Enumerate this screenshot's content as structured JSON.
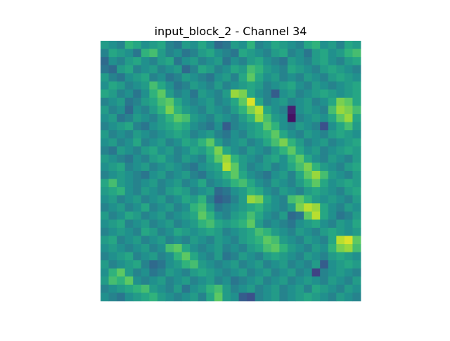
{
  "chart_data": {
    "type": "heatmap",
    "title": "input_block_2 - Channel 34",
    "axes_visible": false,
    "colormap": "viridis",
    "grid": false,
    "value_range": [
      0,
      1
    ],
    "rows": 32,
    "cols": 32,
    "values": [
      [
        0.55,
        0.5,
        0.45,
        0.65,
        0.6,
        0.5,
        0.55,
        0.6,
        0.45,
        0.4,
        0.55,
        0.5,
        0.6,
        0.5,
        0.35,
        0.4,
        0.55,
        0.5,
        0.65,
        0.45,
        0.5,
        0.6,
        0.55,
        0.5,
        0.45,
        0.6,
        0.65,
        0.5,
        0.55,
        0.45,
        0.6,
        0.55
      ],
      [
        0.45,
        0.6,
        0.55,
        0.5,
        0.4,
        0.65,
        0.7,
        0.55,
        0.45,
        0.5,
        0.4,
        0.45,
        0.55,
        0.6,
        0.5,
        0.45,
        0.4,
        0.6,
        0.55,
        0.5,
        0.45,
        0.55,
        0.6,
        0.45,
        0.5,
        0.4,
        0.55,
        0.6,
        0.5,
        0.55,
        0.65,
        0.7
      ],
      [
        0.35,
        0.5,
        0.45,
        0.55,
        0.6,
        0.5,
        0.45,
        0.55,
        0.6,
        0.4,
        0.5,
        0.55,
        0.45,
        0.5,
        0.55,
        0.4,
        0.5,
        0.45,
        0.55,
        0.6,
        0.5,
        0.45,
        0.4,
        0.55,
        0.5,
        0.45,
        0.55,
        0.6,
        0.5,
        0.45,
        0.55,
        0.6
      ],
      [
        0.4,
        0.35,
        0.55,
        0.6,
        0.45,
        0.5,
        0.55,
        0.45,
        0.5,
        0.55,
        0.35,
        0.45,
        0.6,
        0.55,
        0.45,
        0.5,
        0.6,
        0.55,
        0.7,
        0.65,
        0.55,
        0.5,
        0.45,
        0.6,
        0.55,
        0.5,
        0.45,
        0.55,
        0.6,
        0.55,
        0.5,
        0.45
      ],
      [
        0.55,
        0.45,
        0.4,
        0.5,
        0.55,
        0.6,
        0.45,
        0.5,
        0.4,
        0.45,
        0.55,
        0.5,
        0.45,
        0.4,
        0.5,
        0.55,
        0.45,
        0.6,
        0.75,
        0.6,
        0.5,
        0.55,
        0.45,
        0.5,
        0.45,
        0.55,
        0.5,
        0.45,
        0.55,
        0.6,
        0.55,
        0.5
      ],
      [
        0.5,
        0.6,
        0.55,
        0.45,
        0.5,
        0.55,
        0.7,
        0.6,
        0.5,
        0.4,
        0.45,
        0.55,
        0.5,
        0.45,
        0.55,
        0.45,
        0.5,
        0.55,
        0.6,
        0.55,
        0.45,
        0.5,
        0.55,
        0.6,
        0.5,
        0.45,
        0.55,
        0.5,
        0.45,
        0.5,
        0.55,
        0.6
      ],
      [
        0.6,
        0.55,
        0.45,
        0.5,
        0.4,
        0.5,
        0.65,
        0.75,
        0.55,
        0.45,
        0.5,
        0.4,
        0.55,
        0.5,
        0.45,
        0.55,
        0.85,
        0.8,
        0.6,
        0.5,
        0.45,
        0.3,
        0.5,
        0.55,
        0.45,
        0.5,
        0.55,
        0.6,
        0.55,
        0.5,
        0.55,
        0.6
      ],
      [
        0.45,
        0.5,
        0.55,
        0.4,
        0.45,
        0.55,
        0.6,
        0.7,
        0.75,
        0.6,
        0.5,
        0.45,
        0.5,
        0.55,
        0.45,
        0.5,
        0.6,
        0.75,
        0.95,
        0.6,
        0.45,
        0.5,
        0.55,
        0.45,
        0.5,
        0.55,
        0.45,
        0.5,
        0.6,
        0.8,
        0.75,
        0.6
      ],
      [
        0.55,
        0.45,
        0.5,
        0.35,
        0.5,
        0.45,
        0.55,
        0.65,
        0.8,
        0.65,
        0.55,
        0.5,
        0.45,
        0.55,
        0.5,
        0.45,
        0.55,
        0.65,
        0.8,
        0.9,
        0.6,
        0.5,
        0.45,
        0.1,
        0.5,
        0.55,
        0.5,
        0.45,
        0.7,
        0.85,
        0.8,
        0.7
      ],
      [
        0.5,
        0.55,
        0.4,
        0.45,
        0.55,
        0.5,
        0.45,
        0.55,
        0.65,
        0.75,
        0.7,
        0.55,
        0.5,
        0.45,
        0.55,
        0.5,
        0.45,
        0.55,
        0.65,
        0.85,
        0.7,
        0.55,
        0.5,
        0.05,
        0.45,
        0.5,
        0.55,
        0.5,
        0.6,
        0.75,
        0.85,
        0.6
      ],
      [
        0.45,
        0.5,
        0.55,
        0.6,
        0.45,
        0.4,
        0.5,
        0.55,
        0.6,
        0.65,
        0.6,
        0.5,
        0.45,
        0.4,
        0.5,
        0.3,
        0.45,
        0.5,
        0.55,
        0.6,
        0.75,
        0.65,
        0.5,
        0.45,
        0.55,
        0.5,
        0.45,
        0.25,
        0.5,
        0.6,
        0.7,
        0.55
      ],
      [
        0.55,
        0.45,
        0.5,
        0.45,
        0.55,
        0.5,
        0.45,
        0.5,
        0.55,
        0.6,
        0.55,
        0.45,
        0.5,
        0.55,
        0.45,
        0.4,
        0.5,
        0.45,
        0.55,
        0.6,
        0.65,
        0.75,
        0.6,
        0.5,
        0.45,
        0.55,
        0.5,
        0.45,
        0.55,
        0.6,
        0.55,
        0.5
      ],
      [
        0.5,
        0.55,
        0.45,
        0.5,
        0.6,
        0.45,
        0.5,
        0.55,
        0.45,
        0.5,
        0.6,
        0.55,
        0.65,
        0.75,
        0.55,
        0.45,
        0.5,
        0.55,
        0.45,
        0.5,
        0.6,
        0.7,
        0.8,
        0.65,
        0.55,
        0.45,
        0.5,
        0.55,
        0.45,
        0.5,
        0.55,
        0.6
      ],
      [
        0.45,
        0.4,
        0.55,
        0.5,
        0.45,
        0.55,
        0.6,
        0.5,
        0.55,
        0.45,
        0.5,
        0.6,
        0.55,
        0.65,
        0.8,
        0.6,
        0.5,
        0.45,
        0.55,
        0.5,
        0.45,
        0.55,
        0.65,
        0.75,
        0.6,
        0.5,
        0.55,
        0.45,
        0.5,
        0.55,
        0.6,
        0.55
      ],
      [
        0.55,
        0.5,
        0.45,
        0.4,
        0.5,
        0.45,
        0.55,
        0.6,
        0.5,
        0.45,
        0.55,
        0.5,
        0.45,
        0.6,
        0.75,
        0.85,
        0.65,
        0.55,
        0.5,
        0.45,
        0.55,
        0.6,
        0.5,
        0.65,
        0.75,
        0.6,
        0.5,
        0.45,
        0.55,
        0.5,
        0.45,
        0.55
      ],
      [
        0.5,
        0.55,
        0.6,
        0.45,
        0.5,
        0.55,
        0.45,
        0.5,
        0.55,
        0.5,
        0.45,
        0.4,
        0.5,
        0.55,
        0.6,
        0.9,
        0.75,
        0.55,
        0.45,
        0.5,
        0.55,
        0.45,
        0.5,
        0.6,
        0.7,
        0.8,
        0.65,
        0.55,
        0.5,
        0.45,
        0.55,
        0.6
      ],
      [
        0.45,
        0.5,
        0.55,
        0.5,
        0.45,
        0.4,
        0.5,
        0.55,
        0.45,
        0.5,
        0.55,
        0.45,
        0.4,
        0.5,
        0.55,
        0.65,
        0.75,
        0.6,
        0.5,
        0.45,
        0.4,
        0.5,
        0.55,
        0.45,
        0.6,
        0.75,
        0.85,
        0.7,
        0.55,
        0.5,
        0.45,
        0.55
      ],
      [
        0.6,
        0.7,
        0.55,
        0.5,
        0.45,
        0.5,
        0.55,
        0.45,
        0.5,
        0.55,
        0.45,
        0.5,
        0.6,
        0.45,
        0.5,
        0.55,
        0.65,
        0.7,
        0.6,
        0.5,
        0.45,
        0.55,
        0.5,
        0.45,
        0.55,
        0.65,
        0.75,
        0.6,
        0.5,
        0.55,
        0.6,
        0.55
      ],
      [
        0.55,
        0.6,
        0.65,
        0.5,
        0.45,
        0.55,
        0.5,
        0.45,
        0.55,
        0.6,
        0.55,
        0.45,
        0.5,
        0.55,
        0.35,
        0.4,
        0.5,
        0.55,
        0.65,
        0.6,
        0.5,
        0.45,
        0.55,
        0.5,
        0.45,
        0.55,
        0.6,
        0.55,
        0.5,
        0.45,
        0.55,
        0.6
      ],
      [
        0.5,
        0.55,
        0.45,
        0.5,
        0.55,
        0.45,
        0.5,
        0.55,
        0.45,
        0.5,
        0.6,
        0.55,
        0.65,
        0.45,
        0.3,
        0.35,
        0.45,
        0.55,
        0.85,
        0.8,
        0.6,
        0.5,
        0.45,
        0.7,
        0.75,
        0.65,
        0.55,
        0.5,
        0.55,
        0.5,
        0.45,
        0.55
      ],
      [
        0.45,
        0.5,
        0.55,
        0.45,
        0.5,
        0.6,
        0.45,
        0.5,
        0.55,
        0.45,
        0.5,
        0.65,
        0.7,
        0.55,
        0.4,
        0.45,
        0.5,
        0.55,
        0.6,
        0.65,
        0.55,
        0.5,
        0.45,
        0.55,
        0.8,
        0.9,
        0.85,
        0.6,
        0.5,
        0.45,
        0.55,
        0.5
      ],
      [
        0.55,
        0.45,
        0.5,
        0.6,
        0.55,
        0.45,
        0.5,
        0.55,
        0.45,
        0.5,
        0.55,
        0.6,
        0.75,
        0.65,
        0.5,
        0.45,
        0.55,
        0.6,
        0.7,
        0.6,
        0.5,
        0.45,
        0.55,
        0.35,
        0.4,
        0.75,
        0.9,
        0.6,
        0.5,
        0.4,
        0.45,
        0.55
      ],
      [
        0.5,
        0.55,
        0.6,
        0.45,
        0.5,
        0.55,
        0.45,
        0.5,
        0.55,
        0.45,
        0.5,
        0.55,
        0.65,
        0.7,
        0.6,
        0.55,
        0.6,
        0.65,
        0.75,
        0.55,
        0.45,
        0.5,
        0.45,
        0.4,
        0.5,
        0.55,
        0.6,
        0.5,
        0.45,
        0.55,
        0.5,
        0.6
      ],
      [
        0.45,
        0.5,
        0.55,
        0.5,
        0.45,
        0.6,
        0.55,
        0.45,
        0.5,
        0.6,
        0.55,
        0.5,
        0.55,
        0.6,
        0.55,
        0.45,
        0.5,
        0.55,
        0.6,
        0.7,
        0.65,
        0.55,
        0.5,
        0.45,
        0.55,
        0.5,
        0.45,
        0.55,
        0.6,
        0.55,
        0.5,
        0.55
      ],
      [
        0.55,
        0.6,
        0.45,
        0.5,
        0.55,
        0.45,
        0.5,
        0.55,
        0.45,
        0.5,
        0.45,
        0.55,
        0.5,
        0.45,
        0.55,
        0.5,
        0.45,
        0.55,
        0.6,
        0.65,
        0.75,
        0.7,
        0.55,
        0.5,
        0.45,
        0.55,
        0.5,
        0.45,
        0.6,
        0.9,
        0.95,
        0.75
      ],
      [
        0.5,
        0.55,
        0.5,
        0.45,
        0.5,
        0.55,
        0.45,
        0.5,
        0.7,
        0.75,
        0.6,
        0.5,
        0.45,
        0.5,
        0.55,
        0.45,
        0.5,
        0.45,
        0.55,
        0.6,
        0.7,
        0.75,
        0.65,
        0.55,
        0.5,
        0.45,
        0.55,
        0.5,
        0.65,
        0.8,
        0.85,
        0.7
      ],
      [
        0.45,
        0.5,
        0.55,
        0.6,
        0.45,
        0.5,
        0.55,
        0.45,
        0.5,
        0.65,
        0.75,
        0.6,
        0.5,
        0.45,
        0.55,
        0.4,
        0.45,
        0.55,
        0.5,
        0.45,
        0.55,
        0.6,
        0.55,
        0.5,
        0.45,
        0.55,
        0.5,
        0.45,
        0.55,
        0.6,
        0.55,
        0.5
      ],
      [
        0.55,
        0.45,
        0.5,
        0.55,
        0.6,
        0.45,
        0.35,
        0.4,
        0.5,
        0.55,
        0.65,
        0.7,
        0.55,
        0.5,
        0.45,
        0.5,
        0.55,
        0.45,
        0.5,
        0.55,
        0.45,
        0.5,
        0.55,
        0.45,
        0.5,
        0.45,
        0.55,
        0.3,
        0.5,
        0.55,
        0.6,
        0.55
      ],
      [
        0.5,
        0.65,
        0.75,
        0.55,
        0.45,
        0.5,
        0.4,
        0.45,
        0.55,
        0.5,
        0.45,
        0.55,
        0.6,
        0.55,
        0.5,
        0.45,
        0.5,
        0.55,
        0.45,
        0.5,
        0.55,
        0.45,
        0.5,
        0.55,
        0.45,
        0.5,
        0.2,
        0.45,
        0.5,
        0.55,
        0.5,
        0.45
      ],
      [
        0.55,
        0.7,
        0.65,
        0.75,
        0.5,
        0.45,
        0.5,
        0.55,
        0.45,
        0.5,
        0.55,
        0.45,
        0.5,
        0.55,
        0.45,
        0.5,
        0.4,
        0.45,
        0.5,
        0.55,
        0.45,
        0.5,
        0.55,
        0.45,
        0.5,
        0.55,
        0.5,
        0.45,
        0.55,
        0.5,
        0.45,
        0.55
      ],
      [
        0.45,
        0.5,
        0.55,
        0.6,
        0.65,
        0.7,
        0.55,
        0.5,
        0.45,
        0.55,
        0.4,
        0.5,
        0.55,
        0.65,
        0.7,
        0.55,
        0.45,
        0.5,
        0.55,
        0.45,
        0.5,
        0.55,
        0.45,
        0.5,
        0.55,
        0.45,
        0.6,
        0.55,
        0.5,
        0.45,
        0.55,
        0.5
      ],
      [
        0.5,
        0.45,
        0.4,
        0.5,
        0.55,
        0.6,
        0.65,
        0.55,
        0.5,
        0.45,
        0.5,
        0.55,
        0.45,
        0.6,
        0.75,
        0.55,
        0.5,
        0.3,
        0.25,
        0.45,
        0.5,
        0.55,
        0.45,
        0.5,
        0.55,
        0.6,
        0.55,
        0.5,
        0.45,
        0.55,
        0.5,
        0.45
      ]
    ]
  }
}
